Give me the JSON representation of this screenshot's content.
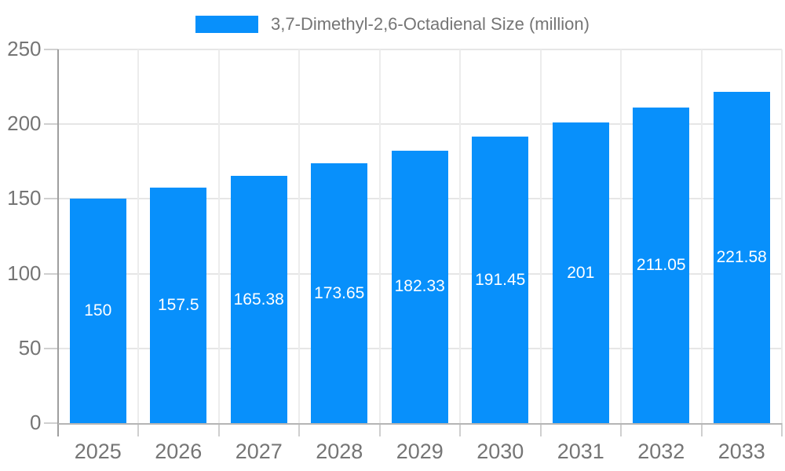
{
  "chart_data": {
    "type": "bar",
    "title": "3,7-Dimethyl-2,6-Octadienal Size (million)",
    "legend": [
      {
        "label": "3,7-Dimethyl-2,6-Octadienal Size (million)",
        "color": "#0890fb"
      }
    ],
    "legend_position": "top",
    "categories": [
      "2025",
      "2026",
      "2027",
      "2028",
      "2029",
      "2030",
      "2031",
      "2032",
      "2033"
    ],
    "series": [
      {
        "name": "3,7-Dimethyl-2,6-Octadienal Size (million)",
        "values": [
          150,
          157.5,
          165.38,
          173.65,
          182.33,
          191.45,
          201,
          211.05,
          221.58
        ]
      }
    ],
    "bar_color": "#0890fb",
    "bar_label_color": "#ffffff",
    "axis_text_color": "#757575",
    "grid": true,
    "xlabel": "",
    "ylabel": "",
    "ylim": [
      0,
      250
    ],
    "y_ticks": [
      0,
      50,
      100,
      150,
      200,
      250
    ]
  }
}
